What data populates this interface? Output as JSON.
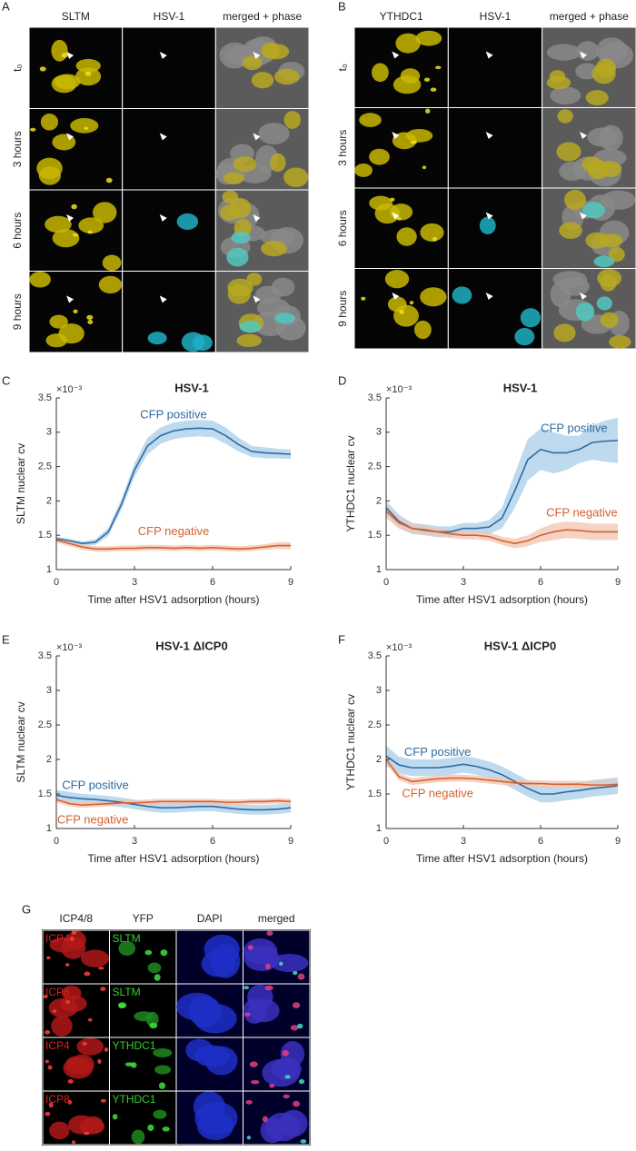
{
  "panels": [
    {
      "label": "A",
      "columns": [
        "SLTM",
        "HSV-1",
        "merged + phase"
      ],
      "rows": [
        "t₀",
        "3 hours",
        "6 hours",
        "9 hours"
      ]
    },
    {
      "label": "B",
      "columns": [
        "YTHDC1",
        "HSV-1",
        "merged + phase"
      ],
      "rows": [
        "t₀",
        "3 hours",
        "6 hours",
        "9 hours"
      ]
    },
    {
      "label": "G",
      "columns": [
        "ICP4/8",
        "YFP",
        "DAPI",
        "merged"
      ],
      "rows": [
        [
          "ICP4",
          "SLTM"
        ],
        [
          "ICP8",
          "SLTM"
        ],
        [
          "ICP4",
          "YTHDC1"
        ],
        [
          "ICP8",
          "YTHDC1"
        ]
      ]
    }
  ],
  "chart_data": [
    {
      "type": "line",
      "label": "C",
      "title": "HSV-1",
      "y_label": "SLTM nuclear cv",
      "y_multiplier": "×10⁻³",
      "x_label": "Time after HSV1 adsorption (hours)",
      "x": [
        0,
        0.5,
        1,
        1.5,
        2,
        2.5,
        3,
        3.5,
        4,
        4.5,
        5,
        5.5,
        6,
        6.5,
        7,
        7.5,
        8,
        8.5,
        9
      ],
      "xlim": [
        0,
        9
      ],
      "xticks": [
        0,
        3,
        6,
        9
      ],
      "ylim": [
        1,
        3.5
      ],
      "yticks": [
        1,
        1.5,
        2,
        2.5,
        3,
        3.5
      ],
      "series": [
        {
          "name": "CFP positive",
          "color": "#2f6aa3",
          "band_color": "#a8cde8",
          "values": [
            1.45,
            1.42,
            1.38,
            1.4,
            1.55,
            1.95,
            2.45,
            2.8,
            2.95,
            3.02,
            3.05,
            3.06,
            3.05,
            2.95,
            2.82,
            2.72,
            2.7,
            2.69,
            2.68
          ],
          "errors": [
            0.03,
            0.03,
            0.03,
            0.04,
            0.06,
            0.08,
            0.1,
            0.12,
            0.12,
            0.12,
            0.12,
            0.12,
            0.12,
            0.12,
            0.1,
            0.08,
            0.08,
            0.07,
            0.07
          ]
        },
        {
          "name": "CFP negative",
          "color": "#d6602e",
          "band_color": "#f2c4b0",
          "values": [
            1.43,
            1.38,
            1.33,
            1.3,
            1.3,
            1.31,
            1.31,
            1.32,
            1.32,
            1.31,
            1.32,
            1.31,
            1.32,
            1.31,
            1.3,
            1.31,
            1.33,
            1.35,
            1.35
          ],
          "errors": [
            0.04,
            0.04,
            0.04,
            0.04,
            0.04,
            0.04,
            0.04,
            0.04,
            0.04,
            0.04,
            0.04,
            0.04,
            0.04,
            0.04,
            0.04,
            0.04,
            0.04,
            0.05,
            0.05
          ]
        }
      ]
    },
    {
      "type": "line",
      "label": "D",
      "title": "HSV-1",
      "y_label": "YTHDC1 nuclear cv",
      "y_multiplier": "×10⁻³",
      "x_label": "Time after HSV1 adsorption (hours)",
      "x": [
        0,
        0.5,
        1,
        1.5,
        2,
        2.5,
        3,
        3.5,
        4,
        4.5,
        5,
        5.5,
        6,
        6.5,
        7,
        7.5,
        8,
        8.5,
        9
      ],
      "xlim": [
        0,
        9
      ],
      "xticks": [
        0,
        3,
        6,
        9
      ],
      "ylim": [
        1,
        3.5
      ],
      "yticks": [
        1,
        1.5,
        2,
        2.5,
        3,
        3.5
      ],
      "series": [
        {
          "name": "CFP positive",
          "color": "#2f6aa3",
          "band_color": "#a8cde8",
          "values": [
            1.9,
            1.7,
            1.6,
            1.58,
            1.55,
            1.55,
            1.6,
            1.6,
            1.62,
            1.75,
            2.15,
            2.6,
            2.75,
            2.7,
            2.7,
            2.75,
            2.85,
            2.87,
            2.88
          ],
          "errors": [
            0.1,
            0.1,
            0.08,
            0.08,
            0.08,
            0.08,
            0.08,
            0.08,
            0.1,
            0.15,
            0.25,
            0.3,
            0.3,
            0.3,
            0.25,
            0.2,
            0.25,
            0.3,
            0.33
          ]
        },
        {
          "name": "CFP negative",
          "color": "#d6602e",
          "band_color": "#f2c4b0",
          "values": [
            1.85,
            1.68,
            1.6,
            1.57,
            1.55,
            1.52,
            1.5,
            1.5,
            1.48,
            1.42,
            1.38,
            1.42,
            1.5,
            1.55,
            1.58,
            1.57,
            1.55,
            1.55,
            1.55
          ],
          "errors": [
            0.1,
            0.08,
            0.07,
            0.06,
            0.06,
            0.06,
            0.06,
            0.06,
            0.06,
            0.06,
            0.07,
            0.08,
            0.1,
            0.12,
            0.12,
            0.12,
            0.12,
            0.12,
            0.12
          ]
        }
      ]
    },
    {
      "type": "line",
      "label": "E",
      "title": "HSV-1 ΔICP0",
      "y_label": "SLTM nuclear cv",
      "y_multiplier": "×10⁻³",
      "x_label": "Time after HSV1 adsorption (hours)",
      "x": [
        0,
        0.5,
        1,
        1.5,
        2,
        2.5,
        3,
        3.5,
        4,
        4.5,
        5,
        5.5,
        6,
        6.5,
        7,
        7.5,
        8,
        8.5,
        9
      ],
      "xlim": [
        0,
        9
      ],
      "xticks": [
        0,
        3,
        6,
        9
      ],
      "ylim": [
        1,
        3.5
      ],
      "yticks": [
        1,
        1.5,
        2,
        2.5,
        3,
        3.5
      ],
      "series": [
        {
          "name": "CFP positive",
          "color": "#2f6aa3",
          "band_color": "#a8cde8",
          "values": [
            1.48,
            1.45,
            1.43,
            1.42,
            1.4,
            1.38,
            1.35,
            1.32,
            1.3,
            1.3,
            1.31,
            1.32,
            1.32,
            1.3,
            1.28,
            1.27,
            1.27,
            1.28,
            1.3
          ],
          "errors": [
            0.08,
            0.08,
            0.07,
            0.07,
            0.07,
            0.07,
            0.07,
            0.07,
            0.07,
            0.07,
            0.07,
            0.07,
            0.07,
            0.07,
            0.07,
            0.07,
            0.07,
            0.07,
            0.07
          ]
        },
        {
          "name": "CFP negative",
          "color": "#d6602e",
          "band_color": "#f2c4b0",
          "values": [
            1.42,
            1.36,
            1.34,
            1.35,
            1.36,
            1.37,
            1.37,
            1.38,
            1.39,
            1.39,
            1.39,
            1.39,
            1.39,
            1.38,
            1.38,
            1.39,
            1.39,
            1.4,
            1.39
          ],
          "errors": [
            0.04,
            0.04,
            0.04,
            0.04,
            0.04,
            0.04,
            0.04,
            0.04,
            0.04,
            0.04,
            0.04,
            0.04,
            0.04,
            0.04,
            0.04,
            0.04,
            0.04,
            0.04,
            0.04
          ]
        }
      ]
    },
    {
      "type": "line",
      "label": "F",
      "title": "HSV-1 ΔICP0",
      "y_label": "YTHDC1 nuclear cv",
      "y_multiplier": "×10⁻³",
      "x_label": "Time after HSV1 adsorption (hours)",
      "x": [
        0,
        0.5,
        1,
        1.5,
        2,
        2.5,
        3,
        3.5,
        4,
        4.5,
        5,
        5.5,
        6,
        6.5,
        7,
        7.5,
        8,
        8.5,
        9
      ],
      "xlim": [
        0,
        9
      ],
      "xticks": [
        0,
        3,
        6,
        9
      ],
      "ylim": [
        1,
        3.5
      ],
      "yticks": [
        1,
        1.5,
        2,
        2.5,
        3,
        3.5
      ],
      "series": [
        {
          "name": "CFP positive",
          "color": "#2f6aa3",
          "band_color": "#a8cde8",
          "values": [
            2.05,
            1.92,
            1.88,
            1.88,
            1.88,
            1.9,
            1.93,
            1.9,
            1.85,
            1.78,
            1.68,
            1.58,
            1.5,
            1.5,
            1.53,
            1.55,
            1.58,
            1.6,
            1.62
          ],
          "errors": [
            0.15,
            0.12,
            0.12,
            0.12,
            0.12,
            0.12,
            0.12,
            0.12,
            0.12,
            0.12,
            0.12,
            0.12,
            0.12,
            0.12,
            0.12,
            0.12,
            0.12,
            0.12,
            0.12
          ]
        },
        {
          "name": "CFP negative",
          "color": "#d6602e",
          "band_color": "#f2c4b0",
          "values": [
            2.0,
            1.75,
            1.68,
            1.7,
            1.72,
            1.73,
            1.73,
            1.72,
            1.7,
            1.68,
            1.66,
            1.65,
            1.65,
            1.64,
            1.64,
            1.64,
            1.63,
            1.63,
            1.64
          ],
          "errors": [
            0.06,
            0.05,
            0.05,
            0.05,
            0.05,
            0.05,
            0.05,
            0.05,
            0.05,
            0.05,
            0.05,
            0.05,
            0.05,
            0.05,
            0.05,
            0.05,
            0.05,
            0.05,
            0.05
          ]
        }
      ]
    }
  ]
}
